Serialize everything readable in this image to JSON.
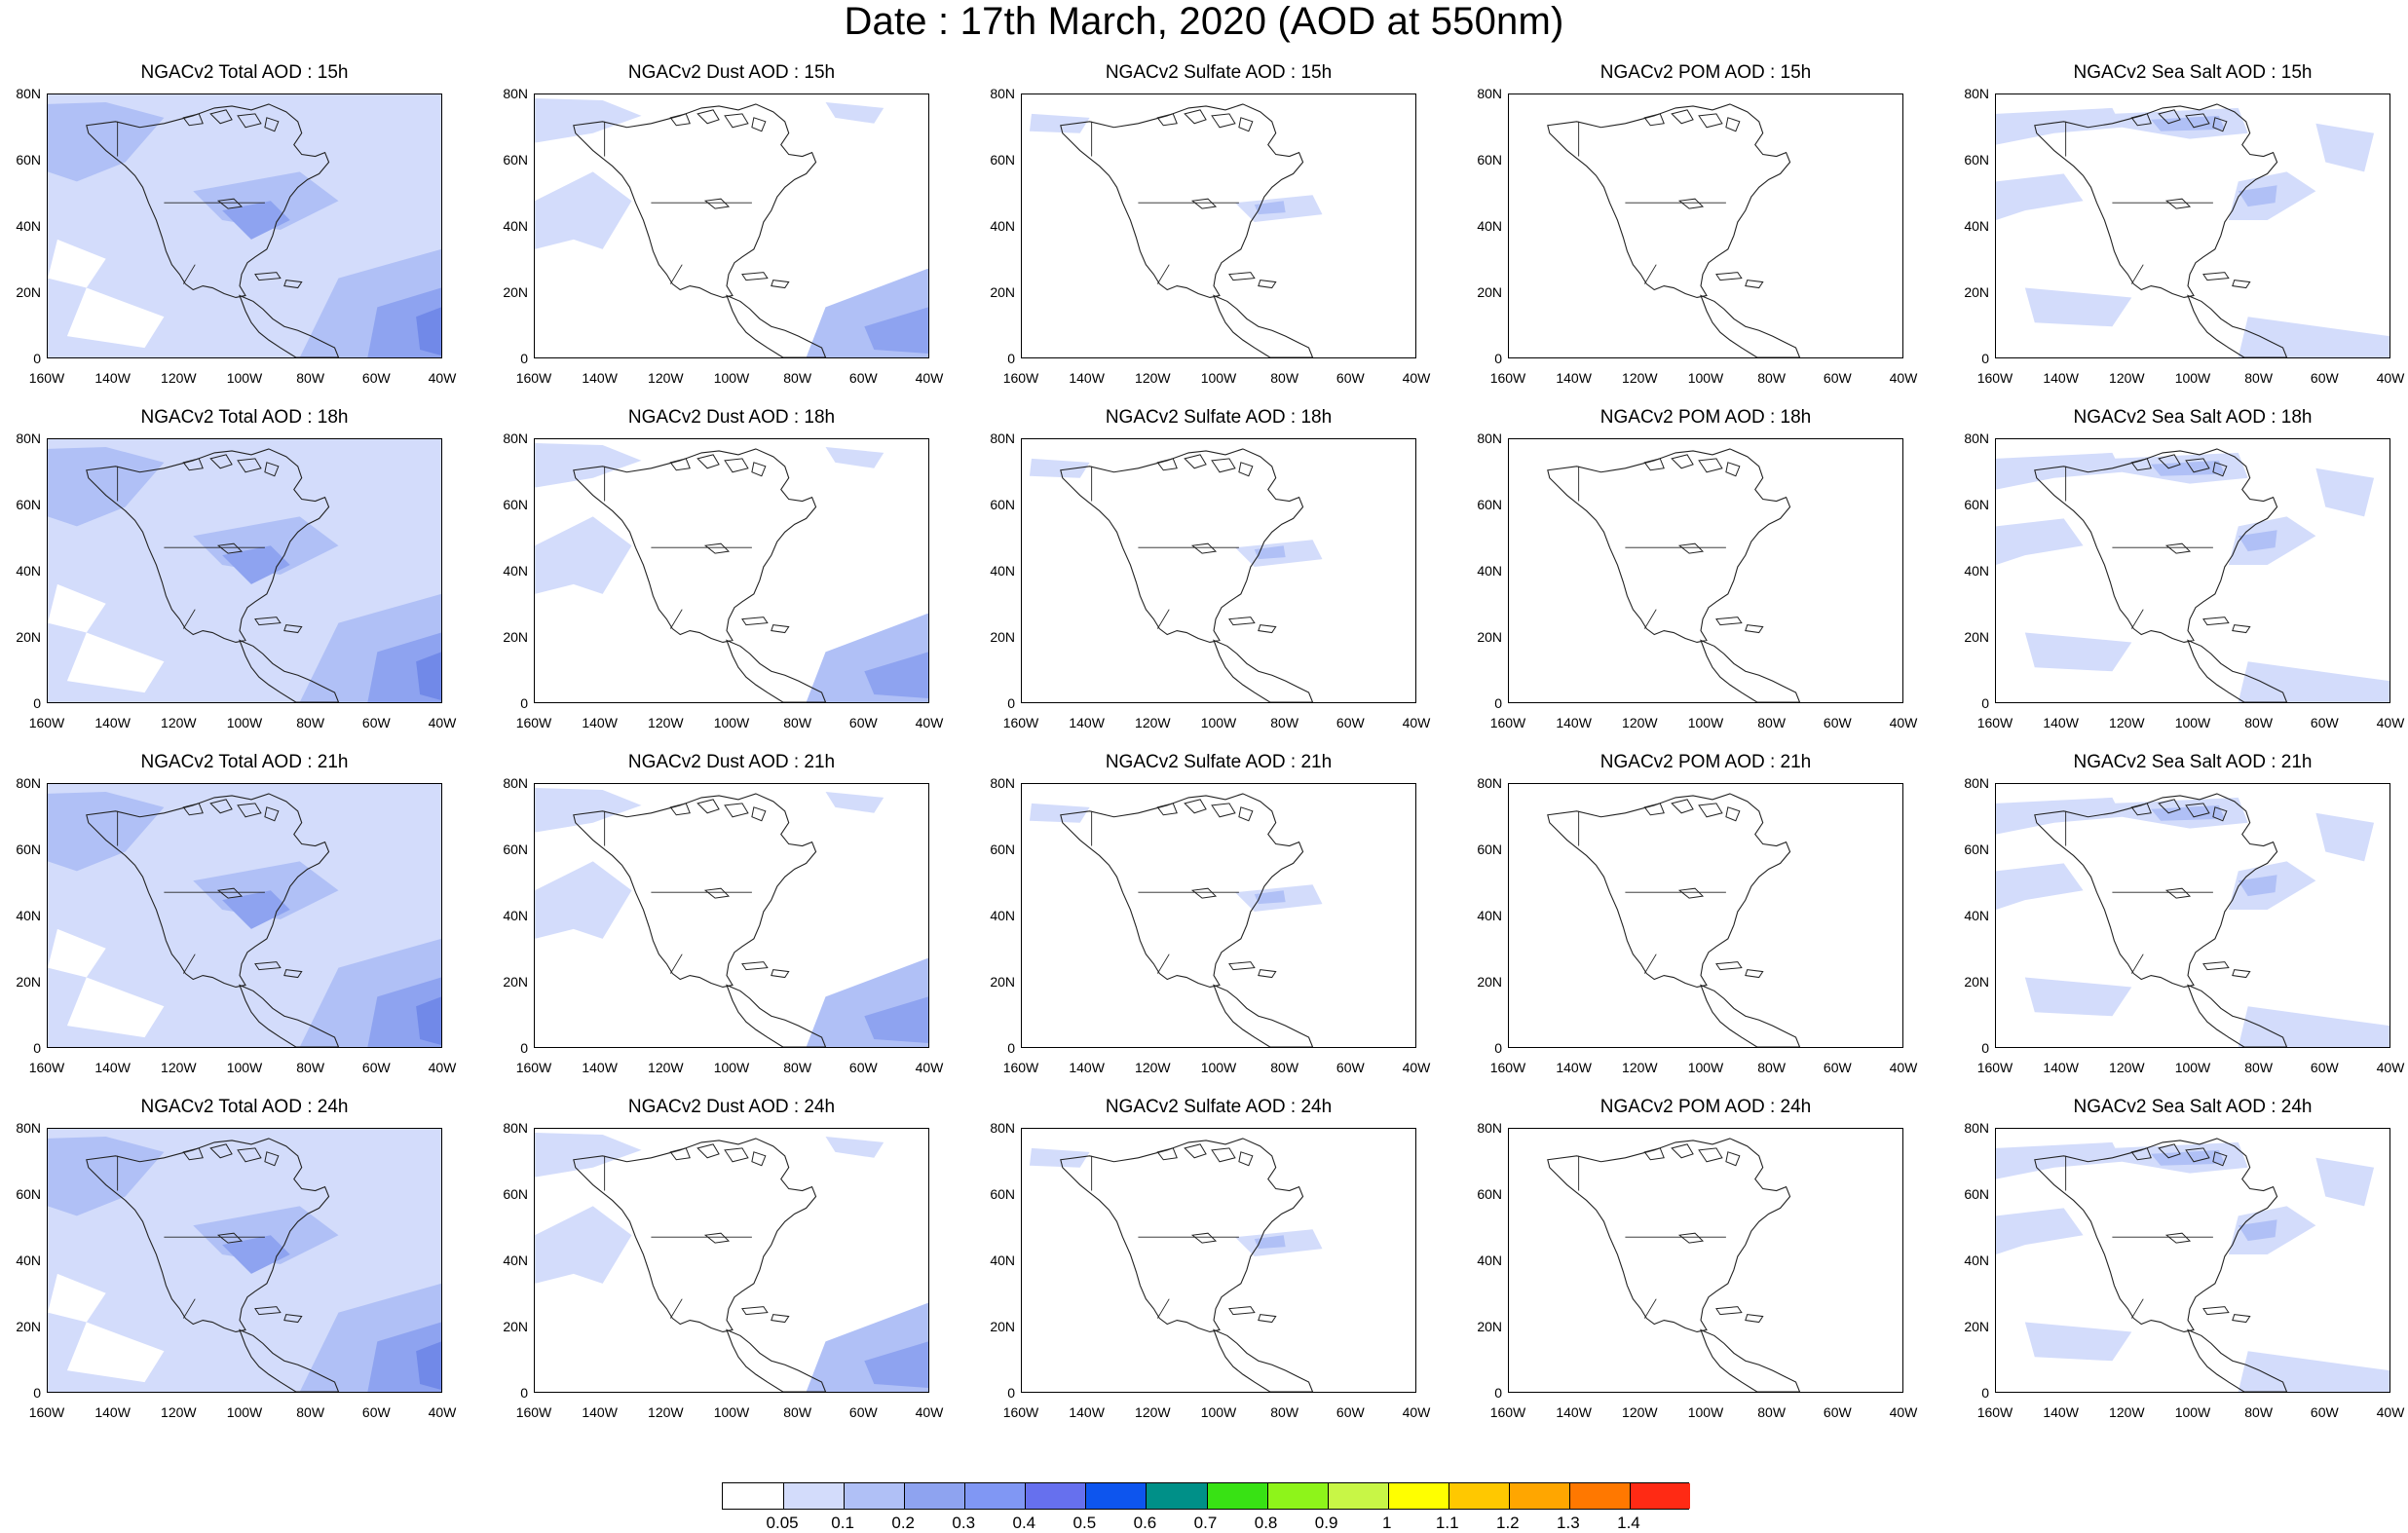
{
  "title": "Date : 17th March, 2020 (AOD at 550nm)",
  "colors": {
    "land_outline": "#222222",
    "aod_light": "#d3dcfb",
    "aod_mid": "#b0c0f6",
    "aod_strong": "#8ea3f0",
    "aod_deep": "#7189e8"
  },
  "map": {
    "y_ticks": [
      "80N",
      "60N",
      "40N",
      "20N",
      "0"
    ],
    "x_ticks": [
      "160W",
      "140W",
      "120W",
      "100W",
      "80W",
      "60W",
      "40W"
    ]
  },
  "panels": [
    {
      "title": "NGACv2 Total AOD : 15h",
      "species": "total"
    },
    {
      "title": "NGACv2 Dust AOD : 15h",
      "species": "dust"
    },
    {
      "title": "NGACv2 Sulfate AOD : 15h",
      "species": "sulfate"
    },
    {
      "title": "NGACv2 POM AOD : 15h",
      "species": "pom"
    },
    {
      "title": "NGACv2 Sea Salt AOD : 15h",
      "species": "seasalt"
    },
    {
      "title": "NGACv2 Total AOD : 18h",
      "species": "total"
    },
    {
      "title": "NGACv2 Dust AOD : 18h",
      "species": "dust"
    },
    {
      "title": "NGACv2 Sulfate AOD : 18h",
      "species": "sulfate"
    },
    {
      "title": "NGACv2 POM AOD : 18h",
      "species": "pom"
    },
    {
      "title": "NGACv2 Sea Salt AOD : 18h",
      "species": "seasalt"
    },
    {
      "title": "NGACv2 Total AOD : 21h",
      "species": "total"
    },
    {
      "title": "NGACv2 Dust AOD : 21h",
      "species": "dust"
    },
    {
      "title": "NGACv2 Sulfate AOD : 21h",
      "species": "sulfate"
    },
    {
      "title": "NGACv2 POM AOD : 21h",
      "species": "pom"
    },
    {
      "title": "NGACv2 Sea Salt AOD : 21h",
      "species": "seasalt"
    },
    {
      "title": "NGACv2 Total AOD : 24h",
      "species": "total"
    },
    {
      "title": "NGACv2 Dust AOD : 24h",
      "species": "dust"
    },
    {
      "title": "NGACv2 Sulfate AOD : 24h",
      "species": "sulfate"
    },
    {
      "title": "NGACv2 POM AOD : 24h",
      "species": "pom"
    },
    {
      "title": "NGACv2 Sea Salt  AOD : 24h",
      "species": "seasalt"
    }
  ],
  "legend": {
    "colors": [
      "#ffffff",
      "#d3dcfb",
      "#b0c0f6",
      "#8ea3f0",
      "#8097f4",
      "#6670ee",
      "#0d55ee",
      "#009088",
      "#38e214",
      "#8ef41a",
      "#c8f646",
      "#ffff00",
      "#ffc800",
      "#ffa600",
      "#ff7800",
      "#ff2a14"
    ],
    "labels": [
      "0.05",
      "0.1",
      "0.2",
      "0.3",
      "0.4",
      "0.5",
      "0.6",
      "0.7",
      "0.8",
      "0.9",
      "1",
      "1.1",
      "1.2",
      "1.3",
      "1.4"
    ]
  }
}
